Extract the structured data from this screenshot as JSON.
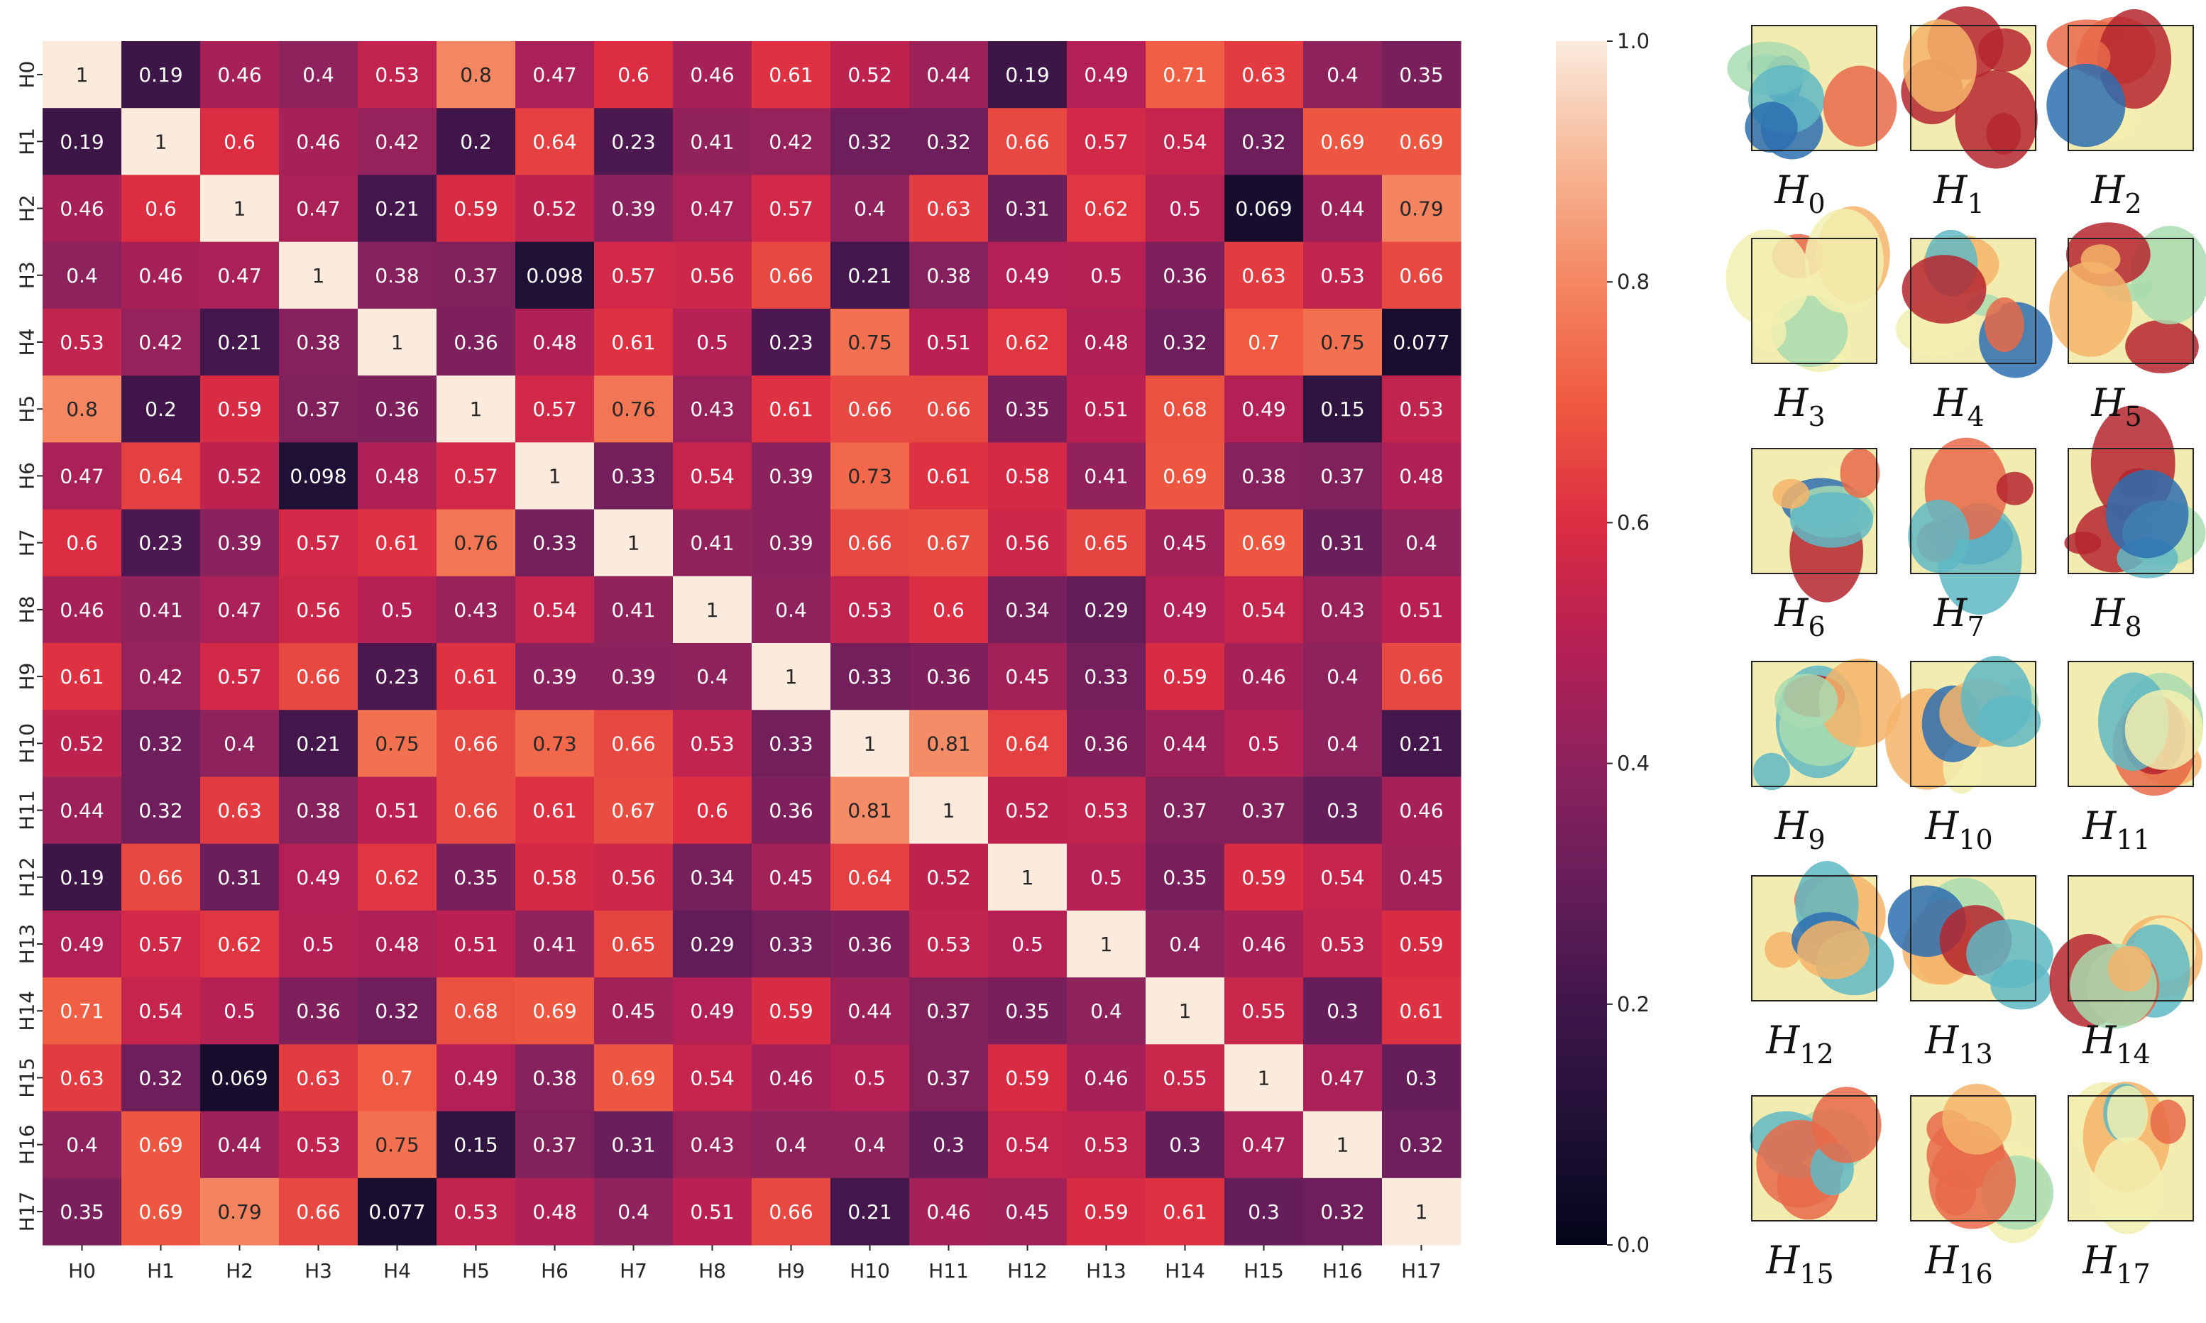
{
  "chart_data": [
    {
      "type": "heatmap",
      "title": "",
      "xlabel": "",
      "ylabel": "",
      "x_categories": [
        "H0",
        "H1",
        "H2",
        "H3",
        "H4",
        "H5",
        "H6",
        "H7",
        "H8",
        "H9",
        "H10",
        "H11",
        "H12",
        "H13",
        "H14",
        "H15",
        "H16",
        "H17"
      ],
      "y_categories": [
        "H0",
        "H1",
        "H2",
        "H3",
        "H4",
        "H5",
        "H6",
        "H7",
        "H8",
        "H9",
        "H10",
        "H11",
        "H12",
        "H13",
        "H14",
        "H15",
        "H16",
        "H17"
      ],
      "values": [
        [
          1,
          0.19,
          0.46,
          0.4,
          0.53,
          0.8,
          0.47,
          0.6,
          0.46,
          0.61,
          0.52,
          0.44,
          0.19,
          0.49,
          0.71,
          0.63,
          0.4,
          0.35
        ],
        [
          0.19,
          1,
          0.6,
          0.46,
          0.42,
          0.2,
          0.64,
          0.23,
          0.41,
          0.42,
          0.32,
          0.32,
          0.66,
          0.57,
          0.54,
          0.32,
          0.69,
          0.69
        ],
        [
          0.46,
          0.6,
          1,
          0.47,
          0.21,
          0.59,
          0.52,
          0.39,
          0.47,
          0.57,
          0.4,
          0.63,
          0.31,
          0.62,
          0.5,
          0.069,
          0.44,
          0.79
        ],
        [
          0.4,
          0.46,
          0.47,
          1,
          0.38,
          0.37,
          0.098,
          0.57,
          0.56,
          0.66,
          0.21,
          0.38,
          0.49,
          0.5,
          0.36,
          0.63,
          0.53,
          0.66
        ],
        [
          0.53,
          0.42,
          0.21,
          0.38,
          1,
          0.36,
          0.48,
          0.61,
          0.5,
          0.23,
          0.75,
          0.51,
          0.62,
          0.48,
          0.32,
          0.7,
          0.75,
          0.077
        ],
        [
          0.8,
          0.2,
          0.59,
          0.37,
          0.36,
          1,
          0.57,
          0.76,
          0.43,
          0.61,
          0.66,
          0.66,
          0.35,
          0.51,
          0.68,
          0.49,
          0.15,
          0.53
        ],
        [
          0.47,
          0.64,
          0.52,
          0.098,
          0.48,
          0.57,
          1,
          0.33,
          0.54,
          0.39,
          0.73,
          0.61,
          0.58,
          0.41,
          0.69,
          0.38,
          0.37,
          0.48
        ],
        [
          0.6,
          0.23,
          0.39,
          0.57,
          0.61,
          0.76,
          0.33,
          1,
          0.41,
          0.39,
          0.66,
          0.67,
          0.56,
          0.65,
          0.45,
          0.69,
          0.31,
          0.4
        ],
        [
          0.46,
          0.41,
          0.47,
          0.56,
          0.5,
          0.43,
          0.54,
          0.41,
          1,
          0.4,
          0.53,
          0.6,
          0.34,
          0.29,
          0.49,
          0.54,
          0.43,
          0.51
        ],
        [
          0.61,
          0.42,
          0.57,
          0.66,
          0.23,
          0.61,
          0.39,
          0.39,
          0.4,
          1,
          0.33,
          0.36,
          0.45,
          0.33,
          0.59,
          0.46,
          0.4,
          0.66
        ],
        [
          0.52,
          0.32,
          0.4,
          0.21,
          0.75,
          0.66,
          0.73,
          0.66,
          0.53,
          0.33,
          1,
          0.81,
          0.64,
          0.36,
          0.44,
          0.5,
          0.4,
          0.21
        ],
        [
          0.44,
          0.32,
          0.63,
          0.38,
          0.51,
          0.66,
          0.61,
          0.67,
          0.6,
          0.36,
          0.81,
          1,
          0.52,
          0.53,
          0.37,
          0.37,
          0.3,
          0.46
        ],
        [
          0.19,
          0.66,
          0.31,
          0.49,
          0.62,
          0.35,
          0.58,
          0.56,
          0.34,
          0.45,
          0.64,
          0.52,
          1,
          0.5,
          0.35,
          0.59,
          0.54,
          0.45
        ],
        [
          0.49,
          0.57,
          0.62,
          0.5,
          0.48,
          0.51,
          0.41,
          0.65,
          0.29,
          0.33,
          0.36,
          0.53,
          0.5,
          1,
          0.4,
          0.46,
          0.53,
          0.59
        ],
        [
          0.71,
          0.54,
          0.5,
          0.36,
          0.32,
          0.68,
          0.69,
          0.45,
          0.49,
          0.59,
          0.44,
          0.37,
          0.35,
          0.4,
          1,
          0.55,
          0.3,
          0.61
        ],
        [
          0.63,
          0.32,
          0.069,
          0.63,
          0.7,
          0.49,
          0.38,
          0.69,
          0.54,
          0.46,
          0.5,
          0.37,
          0.59,
          0.46,
          0.55,
          1,
          0.47,
          0.3
        ],
        [
          0.4,
          0.69,
          0.44,
          0.53,
          0.75,
          0.15,
          0.37,
          0.31,
          0.43,
          0.4,
          0.4,
          0.3,
          0.54,
          0.53,
          0.3,
          0.47,
          1,
          0.32
        ],
        [
          0.35,
          0.69,
          0.79,
          0.66,
          0.077,
          0.53,
          0.48,
          0.4,
          0.51,
          0.66,
          0.21,
          0.46,
          0.45,
          0.59,
          0.61,
          0.3,
          0.32,
          1
        ]
      ],
      "colormap": "rocket",
      "colorbar": {
        "range": [
          0,
          1
        ],
        "ticks": [
          "0.0",
          "0.2",
          "0.4",
          "0.6",
          "0.8",
          "1.0"
        ]
      },
      "annotations": true
    }
  ],
  "attention_maps": {
    "description_hidden": true,
    "items": [
      {
        "base": "H",
        "sub": "0"
      },
      {
        "base": "H",
        "sub": "1"
      },
      {
        "base": "H",
        "sub": "2"
      },
      {
        "base": "H",
        "sub": "3"
      },
      {
        "base": "H",
        "sub": "4"
      },
      {
        "base": "H",
        "sub": "5"
      },
      {
        "base": "H",
        "sub": "6"
      },
      {
        "base": "H",
        "sub": "7"
      },
      {
        "base": "H",
        "sub": "8"
      },
      {
        "base": "H",
        "sub": "9"
      },
      {
        "base": "H",
        "sub": "10"
      },
      {
        "base": "H",
        "sub": "11"
      },
      {
        "base": "H",
        "sub": "12"
      },
      {
        "base": "H",
        "sub": "13"
      },
      {
        "base": "H",
        "sub": "14"
      },
      {
        "base": "H",
        "sub": "15"
      },
      {
        "base": "H",
        "sub": "16"
      },
      {
        "base": "H",
        "sub": "17"
      }
    ]
  }
}
